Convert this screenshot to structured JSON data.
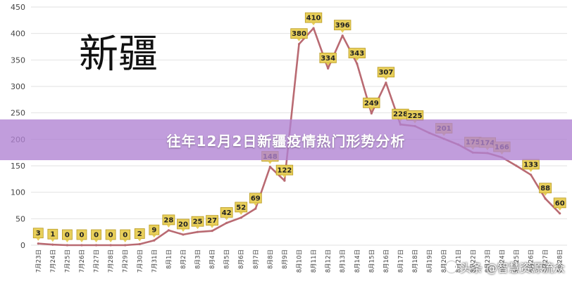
{
  "banner": {
    "title": "往年12月2日新疆疫情热门形势分析"
  },
  "watermark": {
    "text": "头条 @智慧资源流众"
  },
  "colors": {
    "line": "#b96a72",
    "label_bg": "#e8cf5a",
    "label_border": "#b89a22",
    "banner": "#b082d2"
  },
  "chart_data": {
    "type": "line",
    "title": "新疆",
    "xlabel": "",
    "ylabel": "",
    "ylim": [
      0,
      450
    ],
    "yticks": [
      0,
      50,
      100,
      150,
      200,
      250,
      300,
      350,
      400,
      450
    ],
    "grid": true,
    "legend": "none",
    "categories": [
      "7月23日",
      "7月24日",
      "7月25日",
      "7月26日",
      "7月27日",
      "7月28日",
      "7月29日",
      "7月30日",
      "7月31日",
      "8月1日",
      "8月2日",
      "8月3日",
      "8月4日",
      "8月5日",
      "8月6日",
      "8月7日",
      "8月8日",
      "8月9日",
      "8月10日",
      "8月11日",
      "8月12日",
      "8月13日",
      "8月14日",
      "8月15日",
      "8月16日",
      "8月17日",
      "8月18日",
      "8月19日",
      "8月20日",
      "8月21日",
      "8月22日",
      "8月23日",
      "8月24日",
      "8月25日",
      "8月26日",
      "8月27日",
      "8月28日"
    ],
    "series": [
      {
        "values": [
          3,
          1,
          0,
          0,
          0,
          0,
          0,
          2,
          9,
          28,
          20,
          25,
          27,
          42,
          52,
          69,
          148,
          122,
          380,
          410,
          334,
          396,
          343,
          249,
          307,
          228,
          225,
          212,
          201,
          190,
          175,
          174,
          166,
          150,
          133,
          88,
          60
        ],
        "labels": [
          "3",
          "1",
          "0",
          "0",
          "0",
          "0",
          "0",
          "2",
          "9",
          "28",
          "20",
          "25",
          "27",
          "42",
          "52",
          "69",
          "148",
          "122",
          "380",
          "410",
          "334",
          "396",
          "343",
          "249",
          "307",
          "228",
          "225",
          "",
          "201",
          "",
          "175",
          "174",
          "166",
          "",
          "133",
          "88",
          "60"
        ]
      }
    ]
  }
}
